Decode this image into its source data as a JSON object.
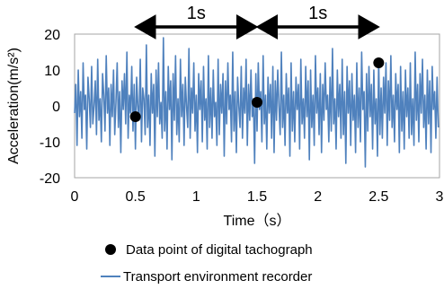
{
  "chart_data": {
    "type": "line",
    "xlabel": "Time（s）",
    "ylabel": "Acceleration(m/s²)",
    "xlim": [
      0,
      3
    ],
    "ylim": [
      -20,
      20
    ],
    "x_ticks": [
      "0",
      "0.5",
      "1",
      "1.5",
      "2",
      "2.5",
      "3"
    ],
    "y_ticks": [
      "20",
      "10",
      "0",
      "-10",
      "-20"
    ],
    "grid": false,
    "legend_position": "bottom",
    "colors": {
      "line": "#4f81bd",
      "points": "#000000",
      "frame": "#a6a6a6"
    },
    "interval_annotations": [
      {
        "from": 0.5,
        "to": 1.5,
        "label": "1s"
      },
      {
        "from": 1.5,
        "to": 2.5,
        "label": "1s"
      }
    ],
    "series": [
      {
        "name": "Data point of digital tachograph",
        "kind": "scatter",
        "x": [
          0.5,
          1.5,
          2.5
        ],
        "y": [
          -3,
          1,
          12
        ]
      },
      {
        "name": "Transport environment recorder",
        "kind": "line",
        "x_start": 0,
        "x_step": 0.01,
        "y": [
          -2,
          6,
          -11,
          10,
          -3,
          4,
          -9,
          12,
          -1,
          3,
          -12,
          8,
          2,
          -6,
          11,
          -5,
          0,
          7,
          -8,
          13,
          -4,
          2,
          -10,
          9,
          3,
          -7,
          14,
          -2,
          5,
          -11,
          6,
          -3,
          10,
          -8,
          1,
          12,
          -6,
          4,
          -13,
          7,
          -1,
          9,
          -5,
          15,
          -9,
          3,
          -2,
          11,
          -7,
          6,
          -12,
          8,
          0,
          -4,
          13,
          -10,
          5,
          2,
          -8,
          17,
          -6,
          3,
          -11,
          9,
          -2,
          6,
          -14,
          10,
          -3,
          12,
          -5,
          1,
          -9,
          19,
          -7,
          4,
          -12,
          11,
          -1,
          7,
          -15,
          9,
          -4,
          14,
          -8,
          2,
          -10,
          13,
          -3,
          6,
          -11,
          8,
          0,
          -6,
          16,
          -9,
          5,
          -2,
          12,
          -7,
          3,
          -13,
          9,
          -1,
          7,
          -10,
          11,
          -4,
          2,
          -12,
          14,
          -6,
          5,
          -9,
          10,
          -3,
          1,
          -11,
          13,
          -8,
          6,
          -2,
          9,
          -14,
          7,
          -5,
          12,
          -1,
          3,
          -10,
          15,
          -7,
          4,
          -13,
          8,
          0,
          -6,
          11,
          -9,
          5,
          -2,
          13,
          -11,
          6,
          -4,
          10,
          -3,
          2,
          -16,
          9,
          -7,
          12,
          -1,
          4,
          -10,
          14,
          -5,
          3,
          -12,
          8,
          -2,
          6,
          -9,
          11,
          -13,
          7,
          -4,
          10,
          0,
          -8,
          15,
          -6,
          3,
          -11,
          9,
          -2,
          5,
          -14,
          12,
          -7,
          4,
          -10,
          8,
          -1,
          6,
          -12,
          13,
          -5,
          2,
          -9,
          11,
          -3,
          7,
          -15,
          10,
          -6,
          3,
          -11,
          14,
          -2,
          5,
          -8,
          9,
          -13,
          6,
          -4,
          12,
          -1,
          3,
          -10,
          8,
          -7,
          16,
          -5,
          2,
          -12,
          10,
          -3,
          6,
          -9,
          13,
          -8,
          4,
          -16,
          11,
          -2,
          7,
          -11,
          9,
          -4,
          3,
          -13,
          12,
          -6,
          5,
          -10,
          15,
          -1,
          4,
          -17,
          9,
          -7,
          11,
          -3,
          6,
          -12,
          10,
          -5,
          2,
          -14,
          13,
          -8,
          5,
          -9,
          8,
          -2,
          12,
          -11,
          7,
          -4,
          14,
          -6,
          3,
          -10,
          9,
          -1,
          6,
          -13,
          11,
          -7,
          4,
          -12,
          10,
          -3,
          5,
          -9,
          12,
          -8,
          2,
          -11,
          15,
          -4,
          6,
          -10,
          9,
          -2,
          13,
          -6,
          3,
          -12,
          10,
          -5,
          7,
          -13,
          11,
          -1,
          4,
          -9,
          8,
          -6
        ]
      }
    ]
  }
}
